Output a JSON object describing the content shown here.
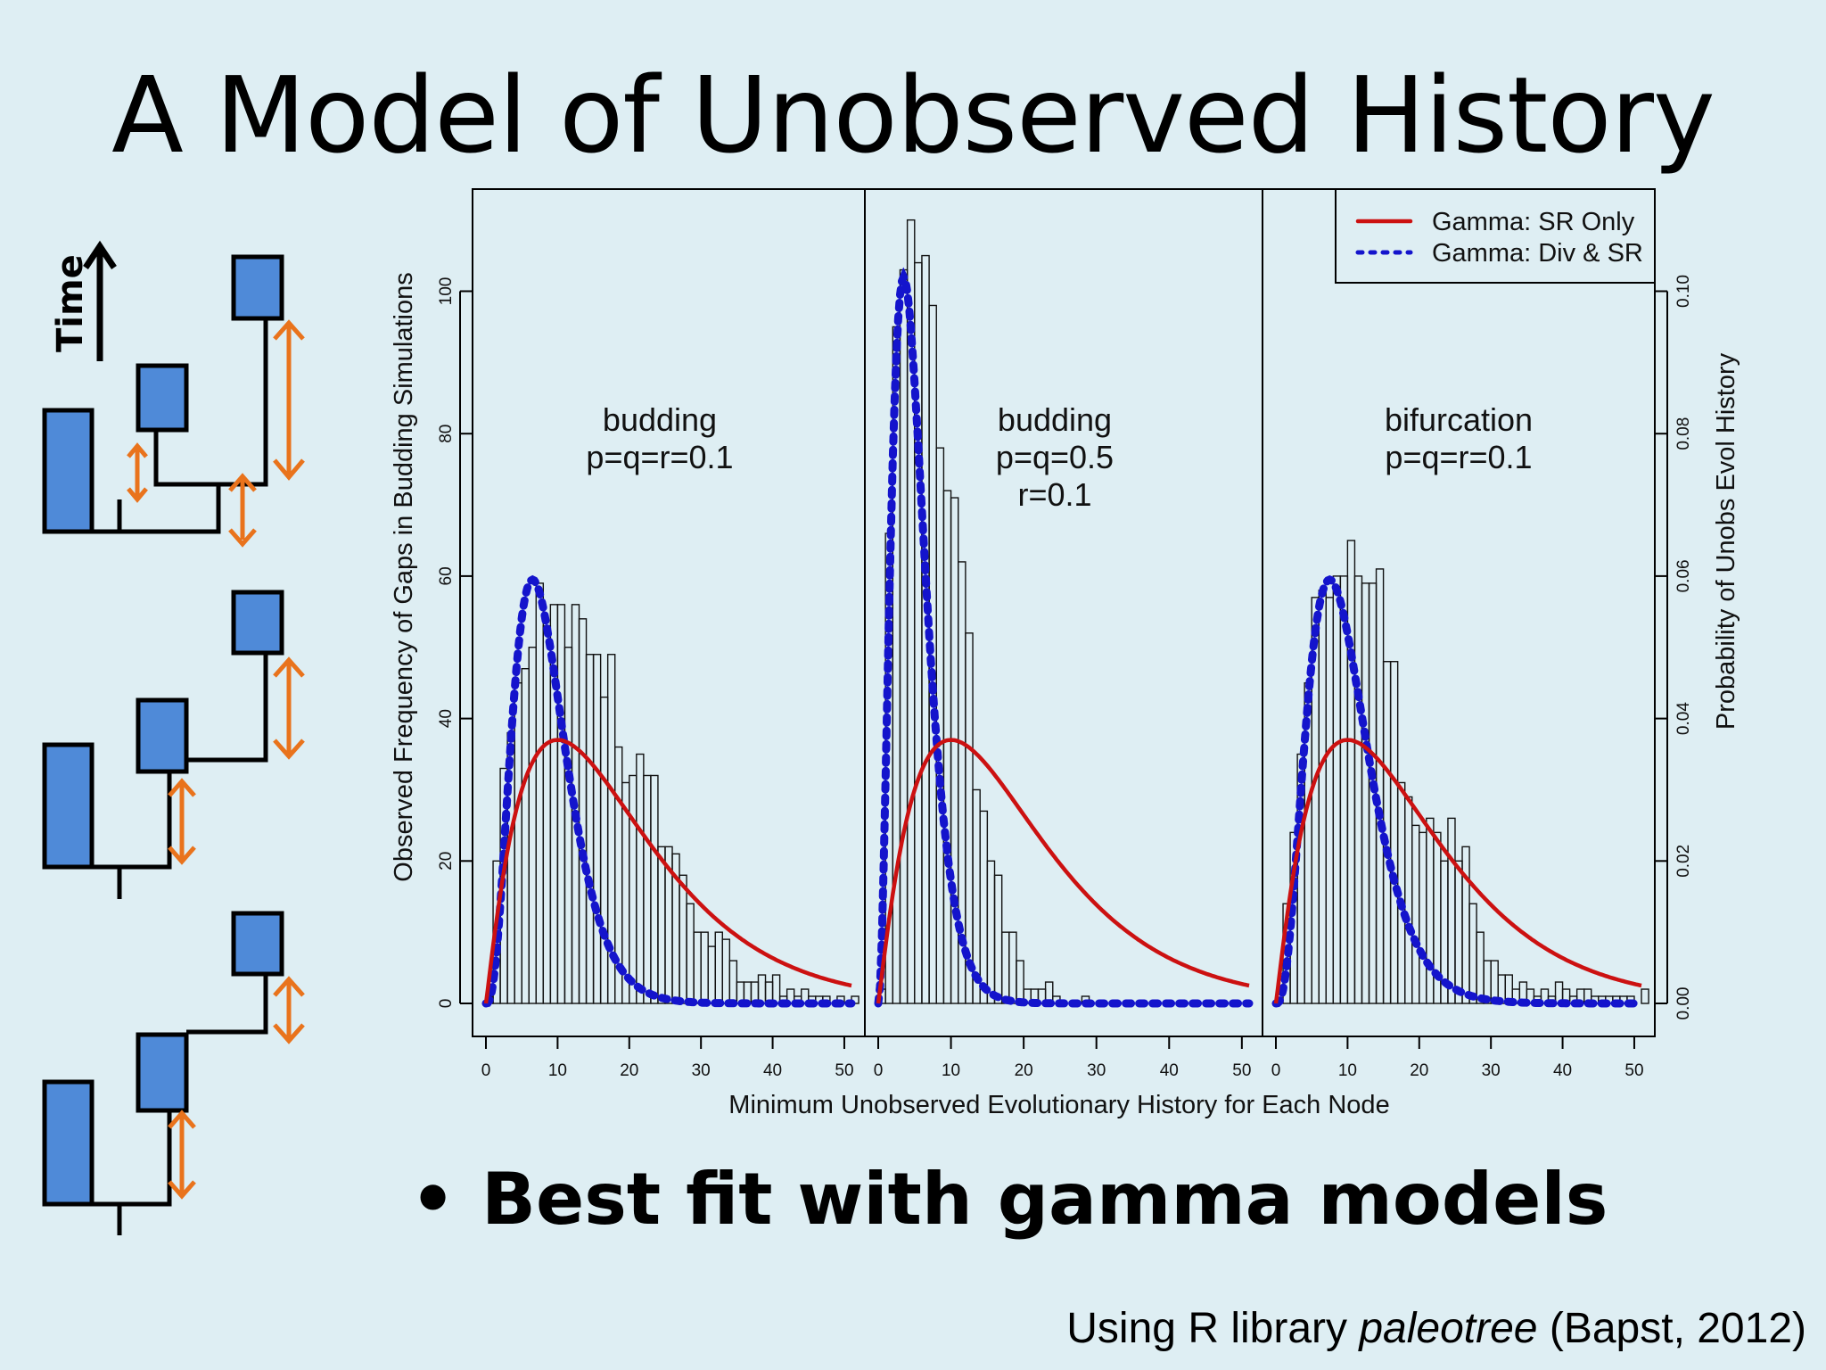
{
  "slide": {
    "title": "A Model of Unobserved History",
    "bullet": "Best fit with gamma models",
    "citation_prefix": "Using R library ",
    "citation_italic": "paleotree",
    "citation_suffix": " (Bapst, 2012)"
  },
  "diagram": {
    "time_label": "Time",
    "box_color": "#4f8ad8",
    "arrow_color": "#e9731c"
  },
  "chart_data": {
    "type": "histogram",
    "xlabel": "Minimum Unobserved Evolutionary History for Each Node",
    "ylabel_left": "Observed Frequency of Gaps in Budding Simulations",
    "ylabel_right": "Probability of Unobs Evol History",
    "ylim_left": [
      0,
      110
    ],
    "ylim_right": [
      0,
      0.11
    ],
    "left_ticks": [
      0,
      20,
      40,
      60,
      80,
      100
    ],
    "right_ticks": [
      "0.00",
      "0.02",
      "0.04",
      "0.06",
      "0.08",
      "0.10"
    ],
    "xlim": [
      0,
      51
    ],
    "x_ticks": [
      0,
      10,
      20,
      30,
      40,
      50
    ],
    "legend": [
      {
        "label": "Gamma: SR Only",
        "color": "#cc1111",
        "style": "solid"
      },
      {
        "label": "Gamma: Div & SR",
        "color": "#1414cc",
        "style": "dotted"
      }
    ],
    "legend_position": "top-right",
    "panels": [
      {
        "labels": [
          "budding",
          "p=q=r=0.1"
        ],
        "bin_width": 1,
        "counts": [
          1,
          20,
          33,
          38,
          45,
          47,
          50,
          59,
          53,
          56,
          56,
          50,
          56,
          54,
          49,
          49,
          43,
          49,
          36,
          31,
          32,
          35,
          32,
          32,
          22,
          22,
          21,
          18,
          14,
          10,
          10,
          8,
          10,
          9,
          6,
          3,
          3,
          3,
          4,
          3,
          4,
          1,
          2,
          1,
          2,
          1,
          1,
          1,
          0,
          1,
          0,
          1
        ],
        "sr_only": {
          "mode": 10,
          "peak": 0.037,
          "end": 0.0025
        },
        "div_sr": {
          "mode": 6.5,
          "peak": 0.0595
        }
      },
      {
        "labels": [
          "budding",
          "p=q=0.5",
          "r=0.1"
        ],
        "bin_width": 1,
        "counts": [
          2,
          66,
          95,
          103,
          110,
          104,
          105,
          98,
          78,
          72,
          71,
          62,
          52,
          30,
          27,
          20,
          18,
          10,
          10,
          6,
          2,
          2,
          2,
          3,
          1,
          0,
          0,
          0,
          1,
          0,
          0,
          0,
          0,
          0,
          0,
          0,
          0,
          0,
          0,
          0,
          0,
          0,
          0,
          0,
          0,
          0,
          0,
          0,
          0,
          0,
          0,
          0
        ],
        "sr_only": {
          "mode": 10,
          "peak": 0.037,
          "end": 0.0025
        },
        "div_sr": {
          "mode": 3.5,
          "peak": 0.102
        }
      },
      {
        "labels": [
          "bifurcation",
          "p=q=r=0.1"
        ],
        "bin_width": 1,
        "counts": [
          0,
          14,
          24,
          35,
          45,
          57,
          58,
          57,
          60,
          60,
          65,
          60,
          59,
          59,
          61,
          48,
          48,
          31,
          29,
          25,
          24,
          26,
          24,
          20,
          26,
          20,
          22,
          14,
          10,
          6,
          6,
          4,
          4,
          2,
          3,
          2,
          1,
          2,
          1,
          3,
          2,
          1,
          2,
          2,
          1,
          1,
          1,
          1,
          1,
          1,
          0,
          2
        ],
        "sr_only": {
          "mode": 10,
          "peak": 0.037,
          "end": 0.0025
        },
        "div_sr": {
          "mode": 7.5,
          "peak": 0.0595
        }
      }
    ]
  }
}
